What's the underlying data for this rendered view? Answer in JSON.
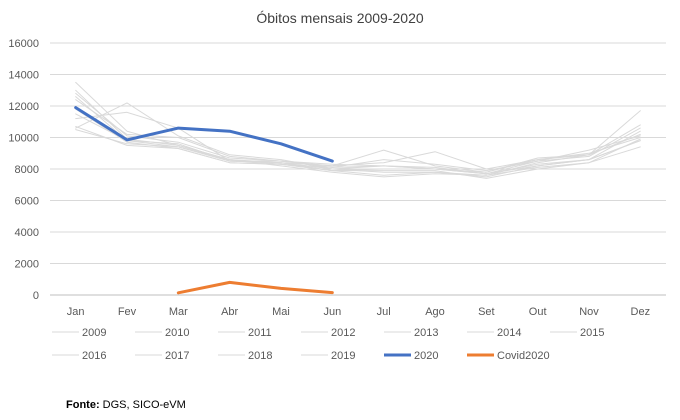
{
  "chart_data": {
    "type": "line",
    "title": "Óbitos mensais 2009-2020",
    "xlabel": "",
    "ylabel": "",
    "ylim": [
      0,
      16000
    ],
    "yticks": [
      0,
      2000,
      4000,
      6000,
      8000,
      10000,
      12000,
      14000,
      16000
    ],
    "ytick_labels": [
      "0",
      "2000",
      "4000",
      "6000",
      "8000",
      "10000",
      "12000",
      "14000",
      "16000"
    ],
    "categories": [
      "Jan",
      "Fev",
      "Mar",
      "Abr",
      "Mai",
      "Jun",
      "Jul",
      "Ago",
      "Set",
      "Out",
      "Nov",
      "Dez"
    ],
    "grid": true,
    "legend_position": "bottom",
    "colors": {
      "historical": "#d9d9d9",
      "y2020": "#4472c4",
      "covid": "#ed7d31",
      "grid": "#d9d9d9",
      "axis": "#bfbfbf"
    },
    "series": [
      {
        "name": "2009",
        "values": [
          13500,
          10400,
          9500,
          8600,
          8400,
          8000,
          7800,
          7800,
          7500,
          8200,
          8600,
          9800
        ]
      },
      {
        "name": "2010",
        "values": [
          12400,
          10200,
          10000,
          8800,
          8500,
          8300,
          8200,
          8000,
          7700,
          8300,
          8600,
          10400
        ]
      },
      {
        "name": "2011",
        "values": [
          11800,
          9700,
          9300,
          8400,
          8300,
          7900,
          7600,
          7800,
          7600,
          8400,
          8900,
          10200
        ]
      },
      {
        "name": "2012",
        "values": [
          10600,
          12200,
          10100,
          8900,
          8600,
          8000,
          8200,
          8100,
          7700,
          8200,
          8600,
          9800
        ]
      },
      {
        "name": "2013",
        "values": [
          13000,
          9900,
          9500,
          8600,
          8200,
          7800,
          7500,
          7700,
          7600,
          8100,
          8400,
          9400
        ]
      },
      {
        "name": "2014",
        "values": [
          10500,
          9600,
          9400,
          8500,
          8400,
          7900,
          7900,
          7900,
          7400,
          8000,
          8400,
          9900
        ]
      },
      {
        "name": "2015",
        "values": [
          12800,
          10100,
          9700,
          8700,
          8500,
          8100,
          8600,
          8300,
          7900,
          8500,
          8800,
          10600
        ]
      },
      {
        "name": "2016",
        "values": [
          11500,
          9800,
          9400,
          8600,
          8300,
          8100,
          8200,
          8000,
          7800,
          8600,
          8900,
          10800
        ]
      },
      {
        "name": "2017",
        "values": [
          12600,
          9800,
          9600,
          8500,
          8400,
          8200,
          9200,
          8200,
          7800,
          8700,
          8900,
          11700
        ]
      },
      {
        "name": "2018",
        "values": [
          11200,
          11600,
          10600,
          8500,
          8500,
          8200,
          8400,
          9100,
          8000,
          8600,
          9000,
          10000
        ]
      },
      {
        "name": "2019",
        "values": [
          10700,
          9500,
          9300,
          8400,
          8300,
          7900,
          8000,
          8000,
          7700,
          8500,
          9200,
          10100
        ]
      },
      {
        "name": "2020",
        "values": [
          11900,
          9850,
          10600,
          10400,
          9600,
          8500,
          null,
          null,
          null,
          null,
          null,
          null
        ]
      },
      {
        "name": "Covid2020",
        "values": [
          null,
          null,
          140,
          800,
          420,
          150,
          null,
          null,
          null,
          null,
          null,
          null
        ]
      }
    ]
  },
  "source": {
    "label": "Fonte:",
    "text": " DGS, SICO-eVM"
  }
}
